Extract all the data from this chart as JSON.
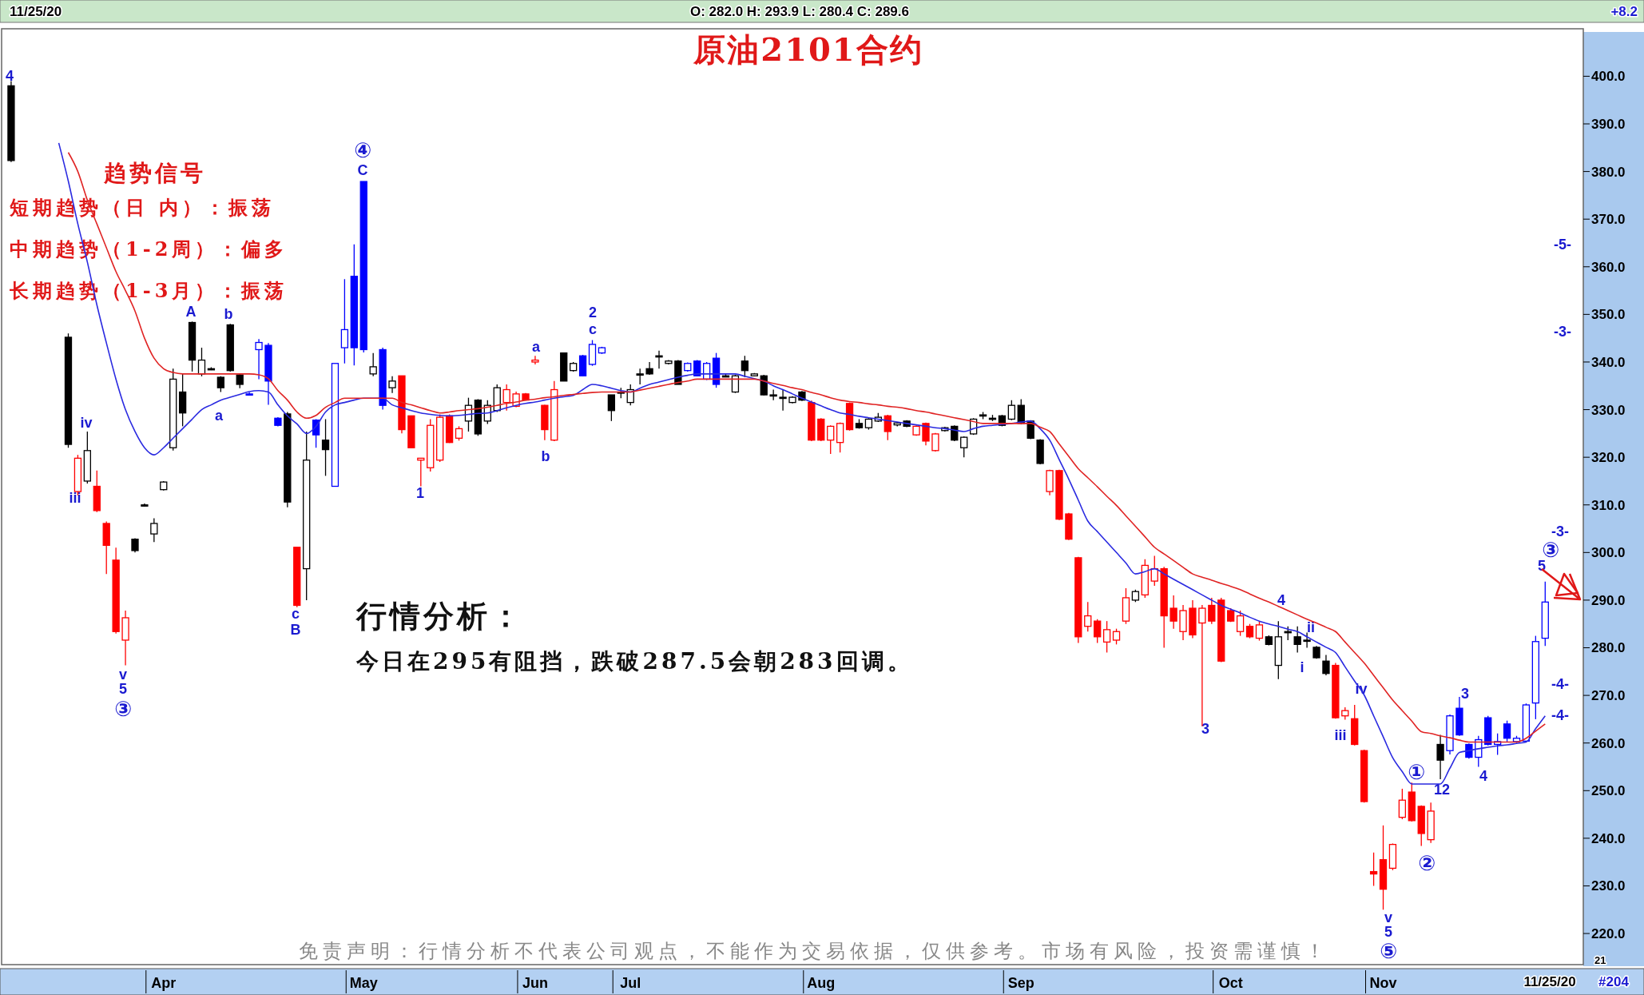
{
  "chart_data": {
    "type": "candlestick",
    "title": "原油2101合约",
    "ylim": [
      213.8,
      409.3
    ],
    "categories": [
      null,
      null,
      null,
      null,
      null,
      null,
      null,
      null,
      null,
      null,
      null,
      null,
      null,
      null,
      null,
      null,
      "Apr",
      null,
      null,
      null,
      null,
      null,
      null,
      null,
      null,
      null,
      null,
      null,
      null,
      null,
      null,
      null,
      null,
      null,
      null,
      null,
      null,
      "May",
      null,
      null,
      null,
      null,
      null,
      null,
      null,
      null,
      null,
      null,
      null,
      null,
      null,
      null,
      null,
      null,
      null,
      "Jun",
      null,
      null,
      null,
      null,
      null,
      null,
      null,
      null,
      null,
      "Jul",
      null,
      null,
      null,
      null,
      null,
      null,
      null,
      null,
      null,
      null,
      null,
      null,
      null,
      null,
      null,
      null,
      null,
      null,
      null,
      "Aug",
      null,
      null,
      null,
      null,
      null,
      null,
      null,
      null,
      null,
      null,
      null,
      null,
      null,
      null,
      null,
      null,
      null,
      null,
      null,
      null,
      "Sep",
      null,
      null,
      null,
      null,
      null,
      null,
      null,
      null,
      null,
      null,
      null,
      null,
      null,
      null,
      null,
      null,
      null,
      null,
      null,
      null,
      null,
      "Oct",
      null,
      null,
      null,
      null,
      null,
      null,
      null,
      null,
      null,
      null,
      null,
      null,
      null,
      null,
      null,
      "Nov",
      null,
      null,
      null,
      null,
      null,
      null,
      null,
      null,
      null,
      null,
      null,
      null,
      null,
      null,
      null,
      null,
      null
    ],
    "yticks": [
      {
        "value": 220,
        "label": "220.0"
      },
      {
        "value": 230,
        "label": "230.0"
      },
      {
        "value": 240,
        "label": "240.0"
      },
      {
        "value": 250,
        "label": "250.0"
      },
      {
        "value": 260,
        "label": "260.0"
      },
      {
        "value": 270,
        "label": "270.0"
      },
      {
        "value": 280,
        "label": "280.0"
      },
      {
        "value": 290,
        "label": "290.0"
      },
      {
        "value": 300,
        "label": "300.0"
      },
      {
        "value": 310,
        "label": "310.0"
      },
      {
        "value": 320,
        "label": "320.0"
      },
      {
        "value": 330,
        "label": "330.0"
      },
      {
        "value": 340,
        "label": "340.0"
      },
      {
        "value": 350,
        "label": "350.0"
      },
      {
        "value": 360,
        "label": "360.0"
      },
      {
        "value": 370,
        "label": "370.0"
      },
      {
        "value": 380,
        "label": "380.0"
      },
      {
        "value": 390,
        "label": "390.0"
      },
      {
        "value": 400,
        "label": "400.0"
      }
    ],
    "ohlc": [
      [
        398,
        399,
        382,
        382.3
      ],
      null,
      null,
      null,
      null,
      null,
      [
        345.2,
        346,
        322,
        322.7
      ],
      [
        312.8,
        320.5,
        312,
        319.8
      ],
      [
        315,
        325.4,
        314.5,
        321.4
      ],
      [
        313.9,
        317.2,
        308.5,
        308.8
      ],
      [
        306.1,
        306.5,
        295.5,
        301.5
      ],
      [
        298.4,
        301,
        283,
        283.4
      ],
      [
        281.6,
        287.8,
        276.3,
        286.3
      ],
      [
        302.8,
        303,
        300,
        300.4
      ],
      [
        310,
        310.3,
        309.7,
        310
      ],
      [
        303.9,
        307.2,
        302.2,
        306.1
      ],
      [
        313.2,
        315,
        313,
        314.8
      ],
      [
        322,
        338.6,
        321.4,
        336.4
      ],
      [
        333.7,
        337.5,
        326.5,
        329.3
      ],
      [
        348.3,
        348.5,
        338,
        340.4
      ],
      [
        337.5,
        343,
        337,
        340.4
      ],
      [
        338.6,
        338.9,
        338.3,
        338.6
      ],
      [
        336.8,
        337,
        333.7,
        334.6
      ],
      [
        347.8,
        348,
        338,
        338.2
      ],
      [
        337.3,
        337.5,
        334.5,
        335.3
      ],
      [
        333.3,
        333.6,
        333,
        333.3
      ],
      [
        342.6,
        344.8,
        336.4,
        344.1
      ],
      [
        343.5,
        344,
        331,
        336
      ],
      [
        328.2,
        328.4,
        326.5,
        326.7
      ],
      [
        329.1,
        329.5,
        309.5,
        310.6
      ],
      [
        301.1,
        301.1,
        288.5,
        288.9
      ],
      [
        296.6,
        325.4,
        290,
        319.4
      ],
      [
        327.8,
        328,
        322,
        324.7
      ],
      [
        323.6,
        328,
        316.1,
        321.6
      ],
      [
        313.9,
        339.7,
        313.9,
        339.7
      ],
      [
        343,
        357.4,
        339.7,
        346.8
      ],
      [
        358,
        364.7,
        339.3,
        343
      ],
      [
        377.9,
        377.9,
        342,
        342.6
      ],
      [
        337.5,
        341.9,
        337,
        339
      ],
      [
        342.6,
        343,
        330,
        330.9
      ],
      [
        334.6,
        337,
        333.5,
        336
      ],
      [
        337.1,
        337.1,
        325,
        325.8
      ],
      [
        328.7,
        328.7,
        322,
        322
      ],
      [
        319.4,
        319.8,
        313.9,
        319.8
      ],
      [
        317.8,
        328,
        317,
        326.7
      ],
      [
        319.4,
        329,
        319,
        328.4
      ],
      [
        328.7,
        329,
        323,
        323.1
      ],
      [
        324,
        326.5,
        323.5,
        326
      ],
      [
        327.6,
        332.5,
        325.4,
        330.9
      ],
      [
        332,
        332.2,
        324.5,
        324.9
      ],
      [
        327.6,
        332,
        327,
        330.9
      ],
      [
        329.8,
        335.3,
        329.5,
        334.6
      ],
      [
        331.5,
        335.3,
        329.8,
        334.2
      ],
      [
        330.7,
        333.8,
        330.5,
        333.3
      ],
      [
        333.3,
        333.5,
        332,
        332
      ],
      [
        340,
        341.3,
        339.5,
        340.4
      ],
      [
        330.9,
        331,
        323.6,
        325.8
      ],
      [
        323.6,
        336,
        323.4,
        334.2
      ],
      [
        341.9,
        342,
        336,
        336
      ],
      [
        338.2,
        340,
        338,
        339.7
      ],
      [
        341.3,
        341.5,
        337,
        337.1
      ],
      [
        339.5,
        344.6,
        339.2,
        343.7
      ],
      [
        341.9,
        343.2,
        341.7,
        343
      ],
      [
        333.1,
        333.1,
        327.6,
        329.8
      ],
      [
        333.7,
        334.6,
        332.4,
        333.7
      ],
      [
        331.5,
        335.3,
        330.9,
        334.2
      ],
      [
        337.5,
        338.6,
        335.3,
        337.5
      ],
      [
        338.6,
        340,
        337.3,
        337.5
      ],
      [
        341.3,
        342.4,
        338.6,
        341.3
      ],
      [
        339.7,
        340.4,
        339.5,
        340.2
      ],
      [
        340.2,
        340.4,
        335.3,
        335.3
      ],
      [
        338.2,
        339.9,
        338,
        339.7
      ],
      [
        340.2,
        340.4,
        337,
        337.1
      ],
      [
        336.4,
        340,
        336.2,
        339.7
      ],
      [
        340.8,
        341.9,
        334.6,
        335.3
      ],
      [
        337.1,
        337.5,
        336.8,
        337.1
      ],
      [
        333.7,
        337.3,
        333.5,
        337.1
      ],
      [
        340.2,
        341.3,
        336.8,
        338.2
      ],
      [
        337.1,
        337.7,
        337,
        337.5
      ],
      [
        337.1,
        337.3,
        333,
        333.1
      ],
      [
        333.1,
        334.2,
        332,
        333.1
      ],
      [
        332.6,
        334.2,
        329.8,
        332.6
      ],
      [
        331.5,
        332.8,
        331.3,
        332.6
      ],
      [
        333.7,
        333.9,
        331.8,
        332
      ],
      [
        331.5,
        331.9,
        323.4,
        323.6
      ],
      [
        328,
        328.2,
        323.4,
        323.6
      ],
      [
        323.6,
        326.7,
        320.7,
        326.5
      ],
      [
        323.1,
        327.3,
        321,
        327.1
      ],
      [
        331.3,
        331.5,
        325.6,
        325.8
      ],
      [
        327.1,
        328,
        326,
        326.2
      ],
      [
        326.2,
        328.2,
        325.8,
        328
      ],
      [
        327.6,
        329.3,
        327.4,
        328.4
      ],
      [
        328.7,
        328.9,
        323.6,
        325.4
      ],
      [
        326.8,
        327.4,
        326.5,
        327.2
      ],
      [
        327.6,
        327.8,
        326.3,
        326.5
      ],
      [
        324.7,
        326.7,
        324.5,
        326.5
      ],
      [
        327.1,
        327.3,
        322.5,
        323.4
      ],
      [
        321.4,
        325.1,
        321.2,
        324.9
      ],
      [
        325.6,
        326.4,
        325.4,
        326.2
      ],
      [
        326.5,
        326.7,
        323.4,
        323.6
      ],
      [
        322,
        324.4,
        320,
        324.2
      ],
      [
        324.9,
        328.2,
        324.7,
        328
      ],
      [
        328.9,
        329.5,
        328,
        328.9
      ],
      [
        328.2,
        328.9,
        327.6,
        328.2
      ],
      [
        328.7,
        328.9,
        326.5,
        326.7
      ],
      [
        328,
        332,
        327.8,
        330.9
      ],
      [
        330.9,
        332.2,
        326.9,
        327.1
      ],
      [
        327.6,
        327.8,
        323.8,
        324
      ],
      [
        323.6,
        323.8,
        318.5,
        318.7
      ],
      [
        312.8,
        317.4,
        312,
        317.2
      ],
      [
        317.2,
        317.4,
        306.8,
        307
      ],
      [
        308.1,
        308.3,
        302.6,
        302.8
      ],
      [
        298.9,
        299.1,
        281,
        282.3
      ],
      [
        284.5,
        289.6,
        283.4,
        286.7
      ],
      [
        285.6,
        286,
        281,
        282.3
      ],
      [
        281.2,
        285.6,
        279,
        283.8
      ],
      [
        281.6,
        284,
        280.7,
        283.4
      ],
      [
        285.6,
        292.5,
        285,
        290.5
      ],
      [
        290,
        292.2,
        289.6,
        291.8
      ],
      [
        291.1,
        298.6,
        290.5,
        297.3
      ],
      [
        294,
        299.3,
        293,
        296.6
      ],
      [
        296.6,
        297,
        280,
        286.7
      ],
      [
        288.3,
        291,
        284,
        285.6
      ],
      [
        283.4,
        289,
        281.6,
        287.8
      ],
      [
        288.3,
        290,
        282,
        282.7
      ],
      [
        285.2,
        289,
        263.5,
        288.3
      ],
      [
        288.9,
        290.5,
        285,
        285.6
      ],
      [
        290,
        290.5,
        277,
        277.2
      ],
      [
        287.8,
        288.3,
        285.4,
        285.6
      ],
      [
        283.4,
        287.8,
        282.5,
        286.7
      ],
      [
        284.5,
        285,
        282,
        282.3
      ],
      [
        282,
        285.5,
        281.5,
        284.8
      ],
      [
        282.3,
        282.6,
        280.5,
        280.7
      ],
      [
        276.3,
        285.6,
        273.4,
        282.3
      ],
      [
        283.4,
        284.5,
        281.6,
        283.4
      ],
      [
        282.3,
        284.5,
        279,
        280.7
      ],
      [
        281.6,
        283.2,
        280,
        281.6
      ],
      [
        280.1,
        280.4,
        277.7,
        277.9
      ],
      [
        277.2,
        278.5,
        274.2,
        274.6
      ],
      [
        276.3,
        276.8,
        265.1,
        265.3
      ],
      [
        265.7,
        267.5,
        264.9,
        266.8
      ],
      [
        265.1,
        268,
        259.5,
        259.7
      ],
      [
        258.4,
        258.6,
        247.5,
        247.7
      ],
      [
        233,
        237,
        230,
        232.5
      ],
      [
        235.5,
        242.7,
        225,
        229.3
      ],
      [
        233.7,
        238.9,
        233.3,
        238.7
      ],
      [
        244.4,
        250.4,
        244,
        248
      ],
      [
        249.7,
        251.7,
        243.5,
        243.7
      ],
      [
        246.7,
        246.9,
        238.4,
        241
      ],
      [
        239.7,
        247.5,
        239,
        245.7
      ],
      [
        259.7,
        261.7,
        252.4,
        256.4
      ],
      [
        258.4,
        266,
        257.6,
        265.7
      ],
      [
        267.3,
        269.7,
        261.5,
        261.7
      ],
      [
        259.7,
        259.9,
        256.7,
        257
      ],
      [
        257,
        261.5,
        255,
        260.7
      ],
      [
        265.3,
        265.7,
        259.5,
        259.7
      ],
      [
        259.7,
        262,
        257.5,
        260.3
      ],
      [
        264,
        264.7,
        260.3,
        261
      ],
      [
        260.3,
        261.5,
        260,
        261
      ],
      [
        260.4,
        268.3,
        260.2,
        268
      ],
      [
        268.4,
        282.5,
        265,
        281.3
      ],
      [
        282,
        293.9,
        280.4,
        289.6
      ]
    ],
    "colors": [
      "#000000",
      null,
      null,
      null,
      null,
      null,
      "#000000",
      "#ff0000",
      "#000000",
      "#ff0000",
      "#ff0000",
      "#ff0000",
      "#ff0000",
      "#000000",
      "#000000",
      "#000000",
      "#000000",
      "#000000",
      "#000000",
      "#000000",
      "#000000",
      "#000000",
      "#000000",
      "#000000",
      "#000000",
      "#0000ff",
      "#0000ff",
      "#0000ff",
      "#0000ff",
      "#000000",
      "#ff0000",
      "#000000",
      "#0000ff",
      "#000000",
      "#0000ff",
      "#0000ff",
      "#0000ff",
      "#0000ff",
      "#000000",
      "#0000ff",
      "#000000",
      "#ff0000",
      "#ff0000",
      "#ff0000",
      "#ff0000",
      "#ff0000",
      "#ff0000",
      "#ff0000",
      "#000000",
      "#000000",
      "#000000",
      "#000000",
      "#ff0000",
      "#ff0000",
      "#ff0000",
      "#ff0000",
      "#ff0000",
      "#ff0000",
      "#000000",
      "#000000",
      "#0000ff",
      "#0000ff",
      "#0000ff",
      "#000000",
      "#000000",
      "#000000",
      "#000000",
      "#000000",
      "#000000",
      "#000000",
      "#000000",
      "#0000ff",
      "#0000ff",
      "#0000ff",
      "#0000ff",
      "#000000",
      "#000000",
      "#000000",
      "#000000",
      "#000000",
      "#000000",
      "#000000",
      "#000000",
      "#000000",
      "#ff0000",
      "#ff0000",
      "#ff0000",
      "#ff0000",
      "#ff0000",
      "#000000",
      "#000000",
      "#000000",
      "#ff0000",
      "#000000",
      "#000000",
      "#ff0000",
      "#ff0000",
      "#ff0000",
      "#000000",
      "#000000",
      "#000000",
      "#000000",
      "#000000",
      "#000000",
      "#000000",
      "#000000",
      "#000000",
      "#000000",
      "#000000",
      "#ff0000",
      "#ff0000",
      "#ff0000",
      "#ff0000",
      "#ff0000",
      "#ff0000",
      "#ff0000",
      "#ff0000",
      "#ff0000",
      "#000000",
      "#ff0000",
      "#ff0000",
      "#ff0000",
      "#ff0000",
      "#ff0000",
      "#ff0000",
      "#ff0000",
      "#ff0000",
      "#ff0000",
      "#ff0000",
      "#ff0000",
      "#ff0000",
      "#ff0000",
      "#000000",
      "#000000",
      "#000000",
      "#000000",
      "#000000",
      "#000000",
      "#000000",
      "#ff0000",
      "#ff0000",
      "#ff0000",
      "#ff0000",
      "#ff0000",
      "#ff0000",
      "#ff0000",
      "#ff0000",
      "#ff0000",
      "#ff0000",
      "#ff0000",
      "#000000",
      "#0000ff",
      "#0000ff",
      "#0000ff",
      "#0000ff",
      "#0000ff",
      "#0000ff",
      "#0000ff",
      "#0000ff",
      "#0000ff",
      "#0000ff",
      "#0000ff"
    ],
    "series": [
      {
        "type": "line",
        "color": "#2a2ae0",
        "values": [
          null,
          null,
          null,
          null,
          null,
          386,
          378,
          369,
          361,
          352,
          344,
          336.4,
          330,
          325.4,
          322,
          320.5,
          322,
          324,
          326,
          328,
          330,
          331,
          332,
          332.6,
          333.2,
          333.8,
          334,
          333.7,
          331,
          328.7,
          327,
          325,
          326.5,
          329.5,
          331,
          331.5,
          332,
          332.4,
          332.4,
          332.4,
          331,
          330.4,
          329.8,
          329.3,
          329,
          328.8,
          328.7,
          328.8,
          329,
          329.2,
          329.3,
          329.8,
          330.4,
          330.9,
          331.3,
          331.6,
          332,
          332.4,
          332.7,
          333,
          334.2,
          335.3,
          335,
          334.5,
          334,
          333.7,
          334.5,
          335.3,
          335.8,
          336.3,
          336.8,
          337.2,
          337.5,
          337.5,
          337.5,
          337.5,
          337.5,
          337,
          336.5,
          336,
          335,
          334.2,
          333.3,
          332.4,
          331.6,
          330.8,
          330,
          329.3,
          329,
          328.6,
          328.3,
          328,
          327.7,
          327.4,
          327.1,
          326.8,
          326.5,
          326.2,
          326,
          325.7,
          325.4,
          326,
          326.5,
          326.7,
          326.9,
          327.1,
          327.4,
          327.6,
          326,
          323.6,
          319.5,
          315.4,
          311,
          306.6,
          304.4,
          302.2,
          300,
          297.8,
          295.5,
          296,
          296.6,
          295.5,
          294.4,
          293.3,
          292.2,
          291.1,
          290,
          288.9,
          288.1,
          287.3,
          286.4,
          285.6,
          285,
          284.5,
          283.9,
          283.4,
          282.3,
          281.2,
          280.1,
          279,
          276,
          273,
          270.1,
          265.7,
          261.3,
          256.9,
          254,
          251.4,
          251.4,
          251.4,
          251.4,
          254.7,
          258,
          258.4,
          258.8,
          259.1,
          259.4,
          259.6,
          259.9,
          260.2,
          263,
          265.7
        ]
      },
      {
        "type": "line",
        "color": "#e02424",
        "values": [
          null,
          null,
          null,
          null,
          null,
          null,
          384,
          380,
          374,
          369,
          364,
          359,
          355,
          350.7,
          345,
          340.8,
          338.6,
          337.8,
          337.5,
          337.5,
          337.5,
          337.5,
          337.5,
          337.5,
          337.5,
          337.5,
          337.3,
          336.5,
          334,
          332,
          329.5,
          328.2,
          328.8,
          330.5,
          331.5,
          332.4,
          332.4,
          332.4,
          332.4,
          332.4,
          332.4,
          331.5,
          331,
          330.4,
          329.8,
          329.3,
          329.5,
          329.8,
          330,
          330.2,
          330.5,
          330.9,
          331.3,
          331.6,
          332,
          332.2,
          332.5,
          332.7,
          333,
          333.2,
          333.4,
          333.6,
          333.7,
          333.7,
          333.7,
          333.7,
          334.1,
          334.5,
          334.9,
          335.3,
          335.7,
          336,
          336.4,
          336.4,
          336.4,
          336.4,
          336.4,
          336.4,
          336.4,
          336,
          335.5,
          335.1,
          334.6,
          334.2,
          333.6,
          333.1,
          332.5,
          332,
          331.7,
          331.5,
          331.2,
          331,
          330.7,
          330.5,
          330.2,
          329.8,
          329.5,
          329.1,
          328.7,
          328.3,
          327.9,
          327.5,
          327.1,
          327.1,
          327.1,
          327.1,
          327.1,
          327.1,
          326.3,
          325.4,
          322.8,
          320.2,
          317.6,
          315.7,
          313.8,
          311.8,
          309.9,
          307.7,
          305.5,
          303.3,
          301.1,
          299.7,
          298.3,
          296.9,
          295.5,
          294.8,
          294.2,
          293.5,
          292.9,
          292.2,
          291.3,
          290.4,
          289.6,
          288.7,
          287.8,
          286.9,
          286,
          285.2,
          284.3,
          283.4,
          281.2,
          279,
          276.8,
          274.2,
          271.6,
          269,
          266.8,
          264.6,
          262.4,
          262,
          261.5,
          261.1,
          260.6,
          260.2,
          260.2,
          260.2,
          260.2,
          260.2,
          260.2,
          261,
          262.5,
          264
        ]
      }
    ],
    "annotations": [
      "11/25/20",
      "O: 282.0   H: 293.9   L: 280.4   C: 289.6",
      "+8.2",
      "趋势信号",
      "短期趋势（日 内）：振荡",
      "中期趋势（1-2周）：偏多",
      "长期趋势（1-3月）：振荡",
      "行情分析：",
      "今日在295有阻挡，跌破287.5会朝283回调。",
      "免责声明：行情分析不代表公司观点，不能作为交易依据，仅供参考。市场有风险，投资需谨慎！",
      "11/25/20",
      "#204",
      "21",
      "4",
      "iv",
      "iii",
      "v",
      "5",
      "③",
      "A",
      "b",
      "a",
      "④",
      "C",
      "c",
      "B",
      "1",
      "a",
      "b",
      "2",
      "c",
      "3",
      "4",
      "ii",
      "i",
      "iv",
      "iii",
      "v",
      "5",
      "⑤",
      "①",
      "12",
      "②",
      "3",
      "4",
      "③",
      "5",
      "-5-",
      "-3-",
      "-3-",
      "-4-",
      "-4-"
    ]
  }
}
